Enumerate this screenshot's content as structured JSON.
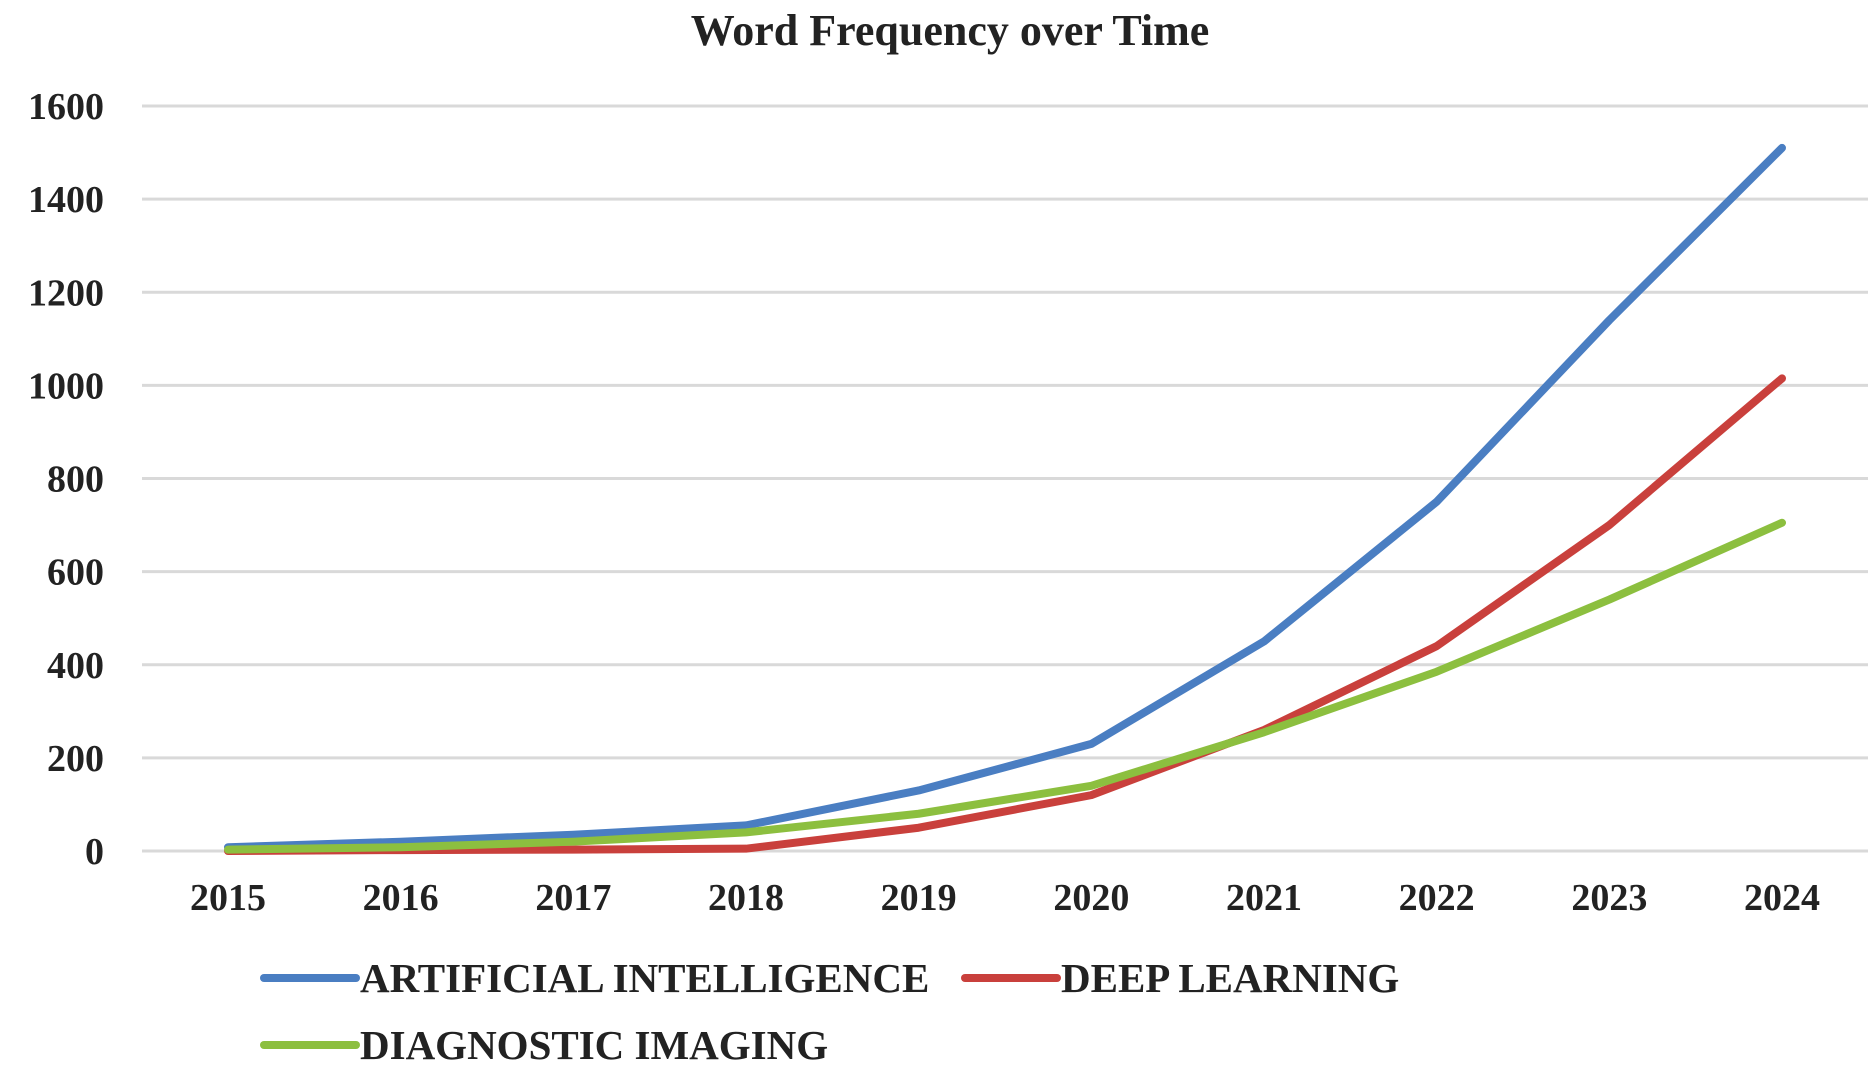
{
  "chart_data": {
    "type": "line",
    "title": "Word Frequency over Time",
    "xlabel": "",
    "ylabel": "",
    "x": [
      "2015",
      "2016",
      "2017",
      "2018",
      "2019",
      "2020",
      "2021",
      "2022",
      "2023",
      "2024"
    ],
    "ylim": [
      0,
      1600
    ],
    "yticks": [
      "0",
      "200",
      "400",
      "600",
      "800",
      "1000",
      "1200",
      "1400",
      "1600"
    ],
    "grid": true,
    "legend_position": "bottom",
    "series": [
      {
        "name": "ARTIFICIAL INTELLIGENCE",
        "color": "#4a7ec2",
        "values": [
          8,
          20,
          35,
          55,
          130,
          230,
          450,
          750,
          1140,
          1510
        ]
      },
      {
        "name": "DEEP LEARNING",
        "color": "#c9403c",
        "values": [
          0,
          2,
          3,
          5,
          50,
          120,
          260,
          440,
          700,
          1015
        ]
      },
      {
        "name": "DIAGNOSTIC IMAGING",
        "color": "#8cbf3f",
        "values": [
          3,
          8,
          20,
          40,
          80,
          140,
          255,
          385,
          540,
          705
        ]
      }
    ]
  }
}
